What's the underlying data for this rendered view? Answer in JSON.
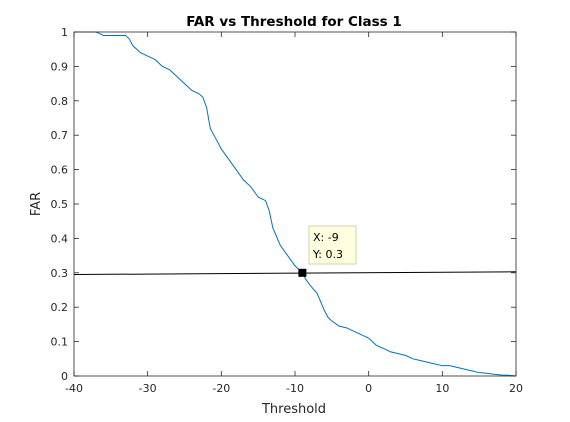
{
  "chart_data": {
    "type": "line",
    "title": "FAR vs Threshold for Class 1",
    "xlabel": "Threshold",
    "ylabel": "FAR",
    "xlim": [
      -40,
      20
    ],
    "ylim": [
      0,
      1
    ],
    "xticks": [
      "-40",
      "-30",
      "-20",
      "-10",
      "0",
      "10",
      "20"
    ],
    "yticks": [
      "0",
      "0.1",
      "0.2",
      "0.3",
      "0.4",
      "0.5",
      "0.6",
      "0.7",
      "0.8",
      "0.9",
      "1"
    ],
    "grid": false,
    "box": true,
    "series": [
      {
        "color": "#0072BD",
        "x": [
          -40,
          -37,
          -36.5,
          -36,
          -33,
          -32.5,
          -32,
          -31,
          -30,
          -29,
          -28.5,
          -28,
          -27,
          -26,
          -25,
          -24.5,
          -24,
          -23,
          -22.5,
          -22,
          -21.5,
          -21,
          -20,
          -19,
          -18,
          -17,
          -16,
          -15,
          -14,
          -13.5,
          -13,
          -12,
          -11,
          -10,
          -9.5,
          -9,
          -8.5,
          -8,
          -7,
          -6,
          -5.5,
          -5,
          -4,
          -3,
          -2,
          -1,
          0,
          1,
          2,
          3,
          4,
          5,
          6,
          7,
          8,
          9,
          10,
          11,
          12,
          13,
          14,
          15,
          16,
          17,
          18,
          19,
          20
        ],
        "y": [
          1,
          1,
          0.995,
          0.99,
          0.99,
          0.98,
          0.96,
          0.94,
          0.93,
          0.92,
          0.91,
          0.9,
          0.89,
          0.87,
          0.85,
          0.84,
          0.83,
          0.82,
          0.81,
          0.78,
          0.72,
          0.7,
          0.66,
          0.63,
          0.6,
          0.57,
          0.55,
          0.52,
          0.51,
          0.48,
          0.43,
          0.38,
          0.35,
          0.32,
          0.31,
          0.3,
          0.28,
          0.265,
          0.24,
          0.19,
          0.17,
          0.16,
          0.145,
          0.14,
          0.13,
          0.12,
          0.11,
          0.09,
          0.08,
          0.07,
          0.065,
          0.06,
          0.05,
          0.045,
          0.04,
          0.035,
          0.03,
          0.03,
          0.025,
          0.02,
          0.015,
          0.01,
          0.008,
          0.005,
          0.003,
          0.002,
          0
        ]
      },
      {
        "color": "#000000",
        "x": [
          -40,
          20
        ],
        "y": [
          0.295,
          0.303
        ]
      }
    ],
    "datatip": {
      "x": -9,
      "y": 0.3,
      "x_text": "X: -9",
      "y_text": "Y: 0.3"
    }
  }
}
